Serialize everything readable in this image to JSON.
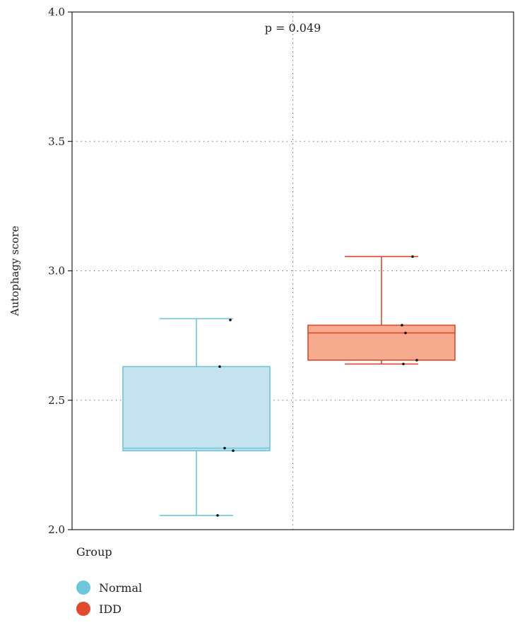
{
  "chart_data": {
    "type": "box",
    "ylabel": "Autophagy score",
    "ylim": [
      2.0,
      4.0
    ],
    "yticks": [
      "2.0",
      "2.5",
      "3.0",
      "3.5",
      "4.0"
    ],
    "annotation": "p = 0.049",
    "grid": "dotted",
    "legend_title": "Group",
    "legend_position": "bottom-left",
    "groups": [
      {
        "name": "Normal",
        "fill": "#c5e3ef",
        "stroke": "#6cc6de",
        "min": 2.055,
        "q1": 2.305,
        "median": 2.315,
        "q3": 2.63,
        "max": 2.815,
        "points": [
          2.81,
          2.63,
          2.315,
          2.305,
          2.055
        ]
      },
      {
        "name": "IDD",
        "fill": "#f7ab8e",
        "stroke": "#d84a2c",
        "min": 2.64,
        "q1": 2.655,
        "median": 2.76,
        "q3": 2.79,
        "max": 3.055,
        "points": [
          3.055,
          2.79,
          2.76,
          2.655,
          2.64
        ]
      }
    ]
  },
  "legend": {
    "title": "Group",
    "items": [
      {
        "label": "Normal",
        "color": "#6cc6de"
      },
      {
        "label": "IDD",
        "color": "#e0492d"
      }
    ]
  }
}
